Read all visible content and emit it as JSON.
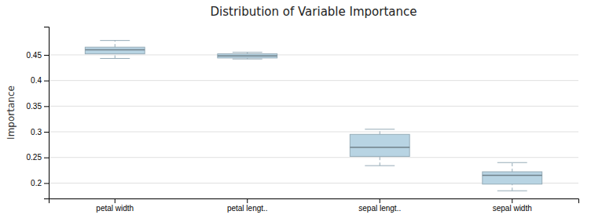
{
  "chart_data": {
    "type": "box",
    "title": "Distribution of Variable Importance",
    "y_label": "Importance",
    "categories": [
      "petal width",
      "petal lengt..",
      "sepal lengt..",
      "sepal width"
    ],
    "values": [
      {
        "whislo": 0.443,
        "q1": 0.452,
        "med": 0.46,
        "q3": 0.465,
        "whishi": 0.478
      },
      {
        "whislo": 0.442,
        "q1": 0.444,
        "med": 0.448,
        "q3": 0.452,
        "whishi": 0.455
      },
      {
        "whislo": 0.234,
        "q1": 0.252,
        "med": 0.27,
        "q3": 0.295,
        "whishi": 0.305
      },
      {
        "whislo": 0.185,
        "q1": 0.198,
        "med": 0.215,
        "q3": 0.222,
        "whishi": 0.24
      }
    ],
    "color": "#b8d4e3",
    "ylim": [
      0.17,
      0.505
    ],
    "yticks": [
      0.2,
      0.25,
      0.3,
      0.35,
      0.4,
      0.45
    ],
    "grid": true
  }
}
